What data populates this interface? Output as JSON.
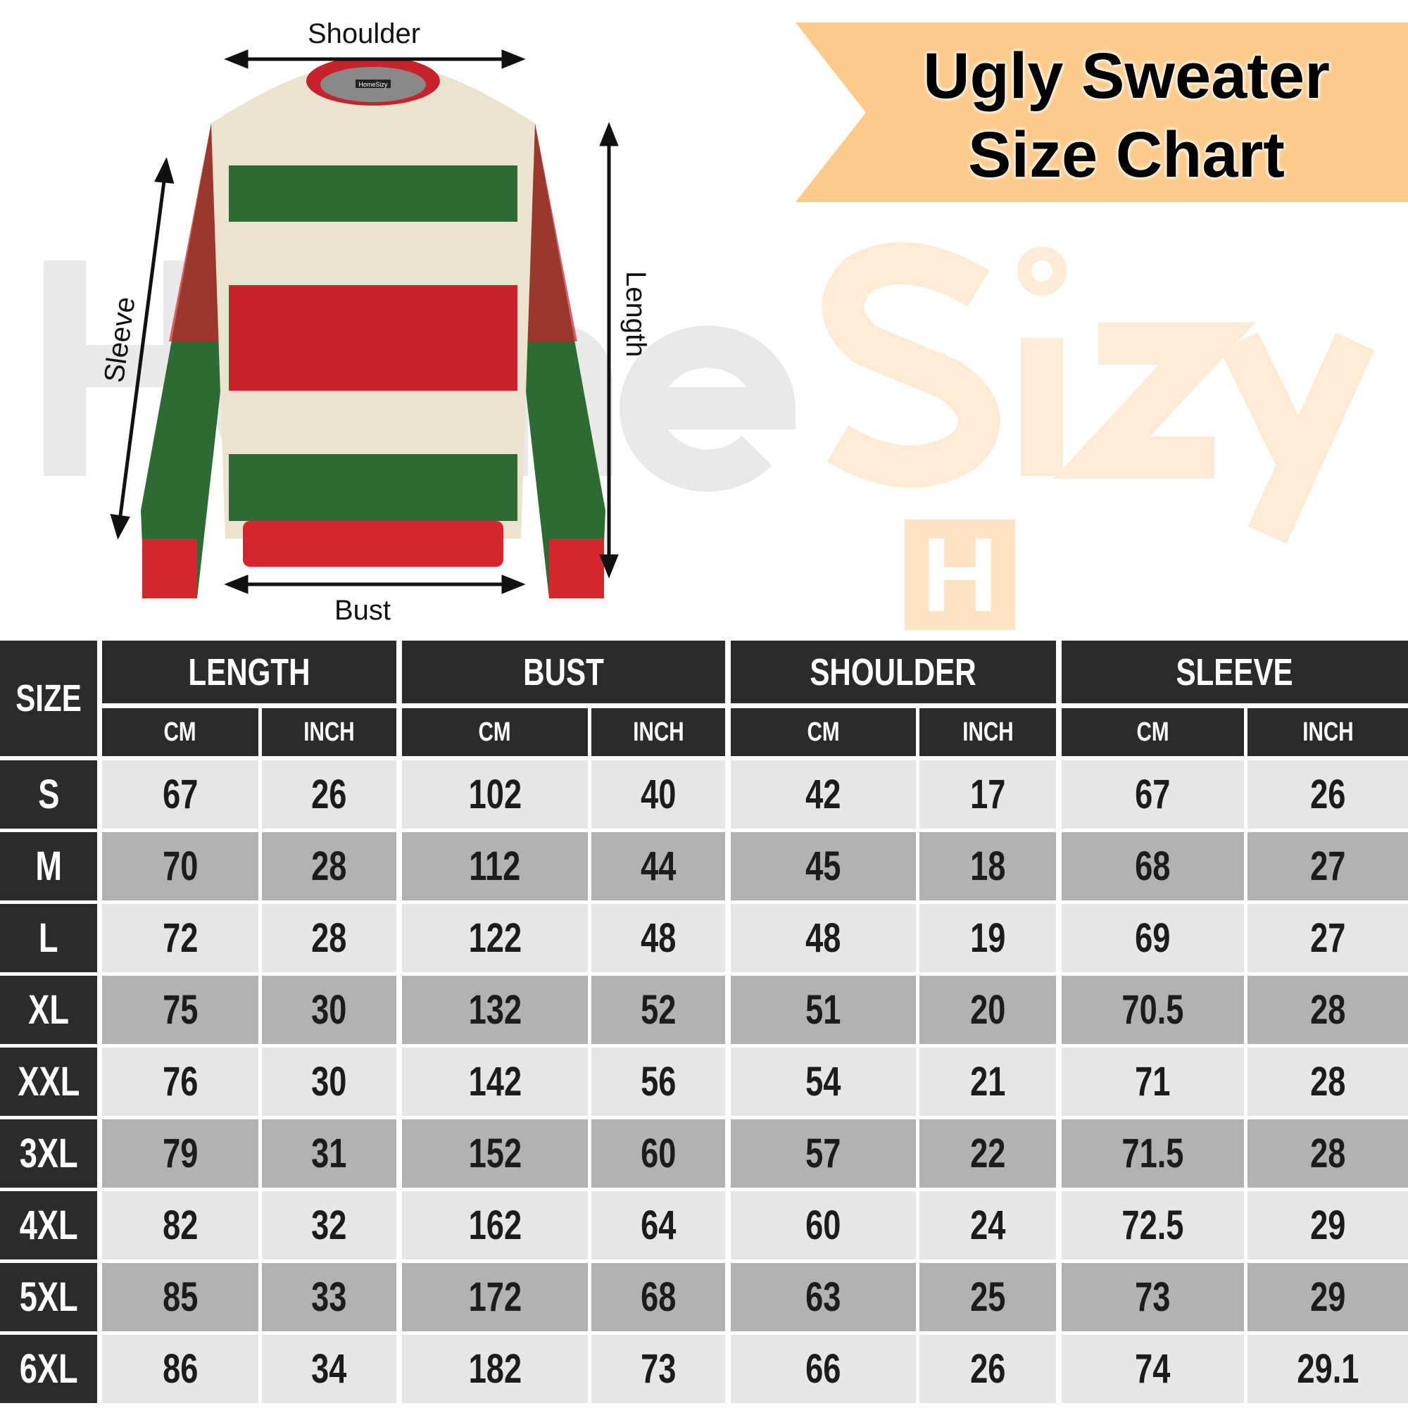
{
  "watermark": {
    "part1": "Home",
    "part2": "Sizy",
    "logo_letter": "H"
  },
  "title": {
    "line1": "Ugly Sweater",
    "line2": "Size Chart"
  },
  "diagram_labels": {
    "shoulder": "Shoulder",
    "sleeve": "Sleeve",
    "length": "Length",
    "bust": "Bust"
  },
  "garment_tag": "HomeSizy",
  "colors": {
    "banner": "#fccb8b",
    "header": "#2b2b2b",
    "row_light": "#e6e6e6",
    "row_dark": "#b2b2b2",
    "sweater_red": "#c8232c",
    "sweater_green": "#2e6b34",
    "sweater_cream": "#ece3cf"
  },
  "table": {
    "size_header": "SIZE",
    "groups": [
      "LENGTH",
      "BUST",
      "SHOULDER",
      "SLEEVE"
    ],
    "units": [
      "CM",
      "INCH",
      "CM",
      "INCH",
      "CM",
      "INCH",
      "CM",
      "INCH"
    ],
    "rows": [
      {
        "size": "S",
        "values": [
          "67",
          "26",
          "102",
          "40",
          "42",
          "17",
          "67",
          "26"
        ]
      },
      {
        "size": "M",
        "values": [
          "70",
          "28",
          "112",
          "44",
          "45",
          "18",
          "68",
          "27"
        ]
      },
      {
        "size": "L",
        "values": [
          "72",
          "28",
          "122",
          "48",
          "48",
          "19",
          "69",
          "27"
        ]
      },
      {
        "size": "XL",
        "values": [
          "75",
          "30",
          "132",
          "52",
          "51",
          "20",
          "70.5",
          "28"
        ]
      },
      {
        "size": "XXL",
        "values": [
          "76",
          "30",
          "142",
          "56",
          "54",
          "21",
          "71",
          "28"
        ]
      },
      {
        "size": "3XL",
        "values": [
          "79",
          "31",
          "152",
          "60",
          "57",
          "22",
          "71.5",
          "28"
        ]
      },
      {
        "size": "4XL",
        "values": [
          "82",
          "32",
          "162",
          "64",
          "60",
          "24",
          "72.5",
          "29"
        ]
      },
      {
        "size": "5XL",
        "values": [
          "85",
          "33",
          "172",
          "68",
          "63",
          "25",
          "73",
          "29"
        ]
      },
      {
        "size": "6XL",
        "values": [
          "86",
          "34",
          "182",
          "73",
          "66",
          "26",
          "74",
          "29.1"
        ]
      }
    ]
  }
}
